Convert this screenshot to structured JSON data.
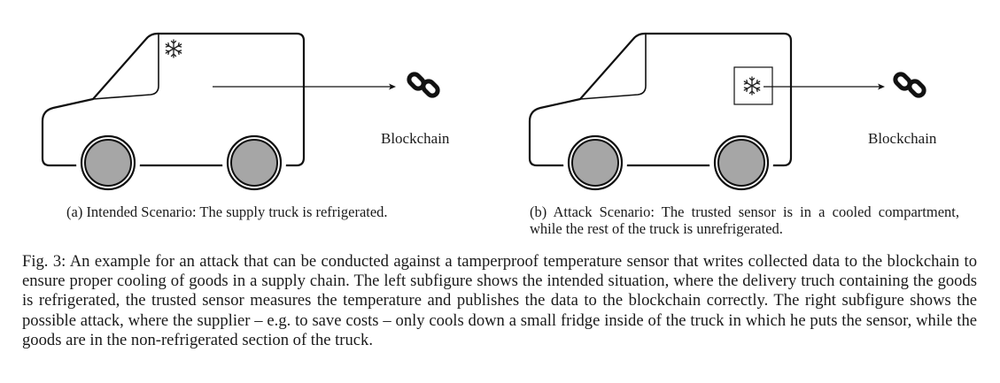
{
  "subfigure_a": {
    "label": "Blockchain",
    "caption": "(a) Intended Scenario: The supply truck is refrigerated."
  },
  "subfigure_b": {
    "label": "Blockchain",
    "caption": "(b) Attack Scenario: The trusted sensor is in a cooled compartment, while the rest of the truck is unrefrigerated."
  },
  "figure_caption": "Fig. 3: An example for an attack that can be conducted against a tamperproof temperature sensor that writes collected data to the blockchain to ensure proper cooling of goods in a supply chain. The left subfigure shows the intended situation, where the delivery truch containing the goods is refrigerated, the trusted sensor measures the temperature and publishes the data to the blockchain correctly. The right subfigure shows the possible attack, where the supplier – e.g. to save costs – only cools down a small fridge inside of the truck in which he puts the sensor, while the goods are in the non-refrigerated section of the truck.",
  "icons": {
    "snowflake": "snowflake-icon",
    "chain": "chain-link-icon"
  }
}
